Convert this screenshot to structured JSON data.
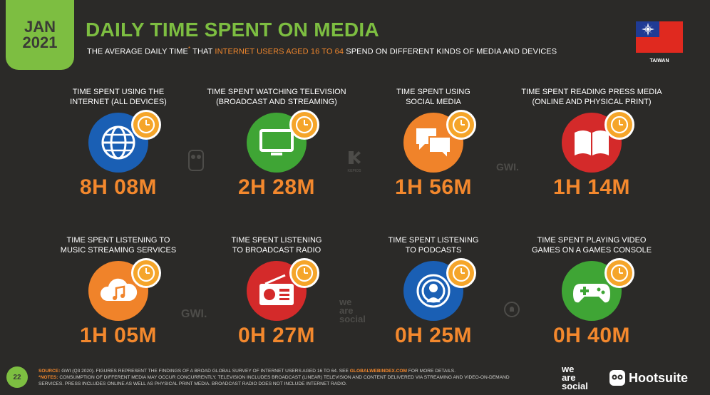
{
  "header": {
    "badge_month": "JAN",
    "badge_year": "2021",
    "title": "DAILY TIME SPENT ON MEDIA",
    "subtitle_part1": "THE AVERAGE DAILY TIME",
    "subtitle_star": "*",
    "subtitle_part2": " THAT ",
    "subtitle_highlight": "INTERNET USERS AGED 16 TO 64",
    "subtitle_part3": " SPEND ON DIFFERENT KINDS OF MEDIA AND DEVICES",
    "country": "TAIWAN"
  },
  "cards": [
    {
      "label_line1": "TIME SPENT USING THE",
      "label_line2": "INTERNET (ALL DEVICES)",
      "value": "8H 08M",
      "icon": "globe-icon",
      "color": "#1a5fb4"
    },
    {
      "label_line1": "TIME SPENT WATCHING TELEVISION",
      "label_line2": "(BROADCAST AND STREAMING)",
      "value": "2H 28M",
      "icon": "television-icon",
      "color": "#3fa535"
    },
    {
      "label_line1": "TIME SPENT USING",
      "label_line2": "SOCIAL MEDIA",
      "value": "1H 56M",
      "icon": "chat-bubbles-icon",
      "color": "#f0832a"
    },
    {
      "label_line1": "TIME SPENT READING PRESS MEDIA",
      "label_line2": "(ONLINE AND PHYSICAL PRINT)",
      "value": "1H 14M",
      "icon": "open-book-icon",
      "color": "#d42a2a"
    },
    {
      "label_line1": "TIME SPENT LISTENING TO",
      "label_line2": "MUSIC STREAMING SERVICES",
      "value": "1H 05M",
      "icon": "music-cloud-icon",
      "color": "#f0832a"
    },
    {
      "label_line1": "TIME SPENT LISTENING",
      "label_line2": "TO BROADCAST RADIO",
      "value": "0H 27M",
      "icon": "radio-icon",
      "color": "#d42a2a"
    },
    {
      "label_line1": "TIME SPENT LISTENING",
      "label_line2": "TO PODCASTS",
      "value": "0H 25M",
      "icon": "podcast-icon",
      "color": "#1a5fb4"
    },
    {
      "label_line1": "TIME SPENT PLAYING VIDEO",
      "label_line2": "GAMES ON A GAMES CONSOLE",
      "value": "0H 40M",
      "icon": "game-controller-icon",
      "color": "#3fa535"
    }
  ],
  "watermarks": {
    "gwi": "GWI.",
    "kepios": "KEPIOS",
    "we_are_social": [
      "we",
      "are",
      "social"
    ]
  },
  "footer": {
    "page_number": "22",
    "source_label": "SOURCE:",
    "source_text": " GWI (Q3 2020). FIGURES REPRESENT THE FINDINGS OF A BROAD GLOBAL SURVEY OF INTERNET USERS AGED 16 TO 64. SEE ",
    "source_link": "GLOBALWEBINDEX.COM",
    "source_end": " FOR MORE DETAILS.",
    "notes_label": "*NOTES:",
    "notes_text": " CONSUMPTION OF DIFFERENT MEDIA MAY OCCUR CONCURRENTLY. TELEVISION INCLUDES BROADCAST (LINEAR) TELEVISION AND CONTENT DELIVERED VIA STREAMING AND VIDEO-ON-DEMAND SERVICES. PRESS INCLUDES ONLINE AS WELL AS PHYSICAL PRINT MEDIA. BROADCAST RADIO DOES NOT INCLUDE INTERNET RADIO.",
    "we_are_social": [
      "we",
      "are",
      "social"
    ],
    "hootsuite": "Hootsuite"
  },
  "colors": {
    "background": "#2b2a28",
    "accent_green": "#7dbe41",
    "accent_orange": "#f3882d"
  }
}
